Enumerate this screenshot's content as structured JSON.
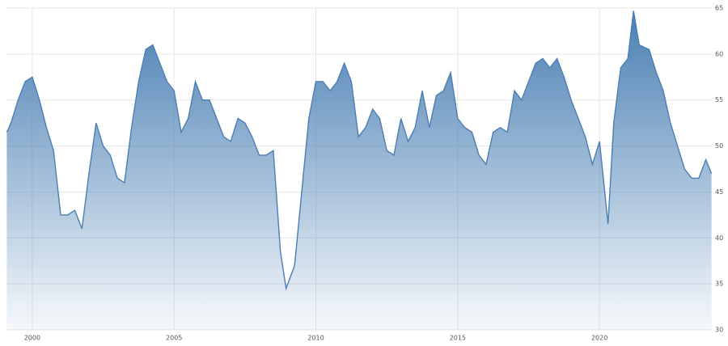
{
  "chart_data": {
    "type": "area",
    "x": [
      1999.1,
      1999.25,
      1999.5,
      1999.75,
      2000.0,
      2000.25,
      2000.5,
      2000.75,
      2001.0,
      2001.25,
      2001.5,
      2001.75,
      2002.0,
      2002.25,
      2002.5,
      2002.75,
      2003.0,
      2003.25,
      2003.5,
      2003.75,
      2004.0,
      2004.25,
      2004.5,
      2004.75,
      2005.0,
      2005.25,
      2005.5,
      2005.75,
      2006.0,
      2006.25,
      2006.5,
      2006.75,
      2007.0,
      2007.25,
      2007.5,
      2007.75,
      2008.0,
      2008.25,
      2008.5,
      2008.75,
      2008.95,
      2009.25,
      2009.5,
      2009.75,
      2010.0,
      2010.25,
      2010.5,
      2010.75,
      2011.0,
      2011.25,
      2011.5,
      2011.75,
      2012.0,
      2012.25,
      2012.5,
      2012.75,
      2013.0,
      2013.25,
      2013.5,
      2013.75,
      2014.0,
      2014.25,
      2014.5,
      2014.75,
      2015.0,
      2015.25,
      2015.5,
      2015.75,
      2016.0,
      2016.25,
      2016.5,
      2016.75,
      2017.0,
      2017.25,
      2017.5,
      2017.75,
      2018.0,
      2018.25,
      2018.5,
      2018.75,
      2019.0,
      2019.25,
      2019.5,
      2019.75,
      2020.0,
      2020.3,
      2020.5,
      2020.75,
      2021.0,
      2021.2,
      2021.4,
      2021.75,
      2022.0,
      2022.25,
      2022.5,
      2022.75,
      2023.0,
      2023.25,
      2023.5,
      2023.75,
      2023.95
    ],
    "series": [
      {
        "color": "#4a7fb3",
        "values": [
          51.5,
          52.5,
          55,
          57,
          57.5,
          55,
          52,
          49.5,
          42.5,
          42.5,
          43,
          41,
          47,
          52.5,
          50,
          49,
          46.5,
          46,
          52,
          57,
          60.5,
          61,
          59,
          57,
          56,
          51.5,
          53,
          57,
          55,
          55,
          53,
          51,
          50.5,
          53,
          52.5,
          51,
          49,
          49,
          49.5,
          38.5,
          34.5,
          37,
          45,
          53,
          57,
          57,
          56,
          57,
          59,
          57,
          51,
          52,
          54,
          53,
          49.5,
          49,
          53,
          50.5,
          52,
          56,
          52,
          55.5,
          56,
          58,
          53,
          52,
          51.5,
          49,
          48,
          51.5,
          52,
          51.5,
          56,
          55,
          57,
          59,
          59.5,
          58.5,
          59.5,
          57.5,
          55,
          53,
          51,
          48,
          50.5,
          41.5,
          52.5,
          58.5,
          59.5,
          64.7,
          61,
          60.5,
          58,
          56,
          52.5,
          50,
          47.5,
          46.5,
          46.5,
          48.5,
          47
        ]
      }
    ],
    "xlim": [
      1999.09,
      2023.96
    ],
    "xticks": [
      2000,
      2005,
      2010,
      2015,
      2020
    ],
    "ylim": [
      30,
      65
    ],
    "yticks": [
      30,
      35,
      40,
      45,
      50,
      55,
      60,
      65
    ],
    "grid": true
  }
}
